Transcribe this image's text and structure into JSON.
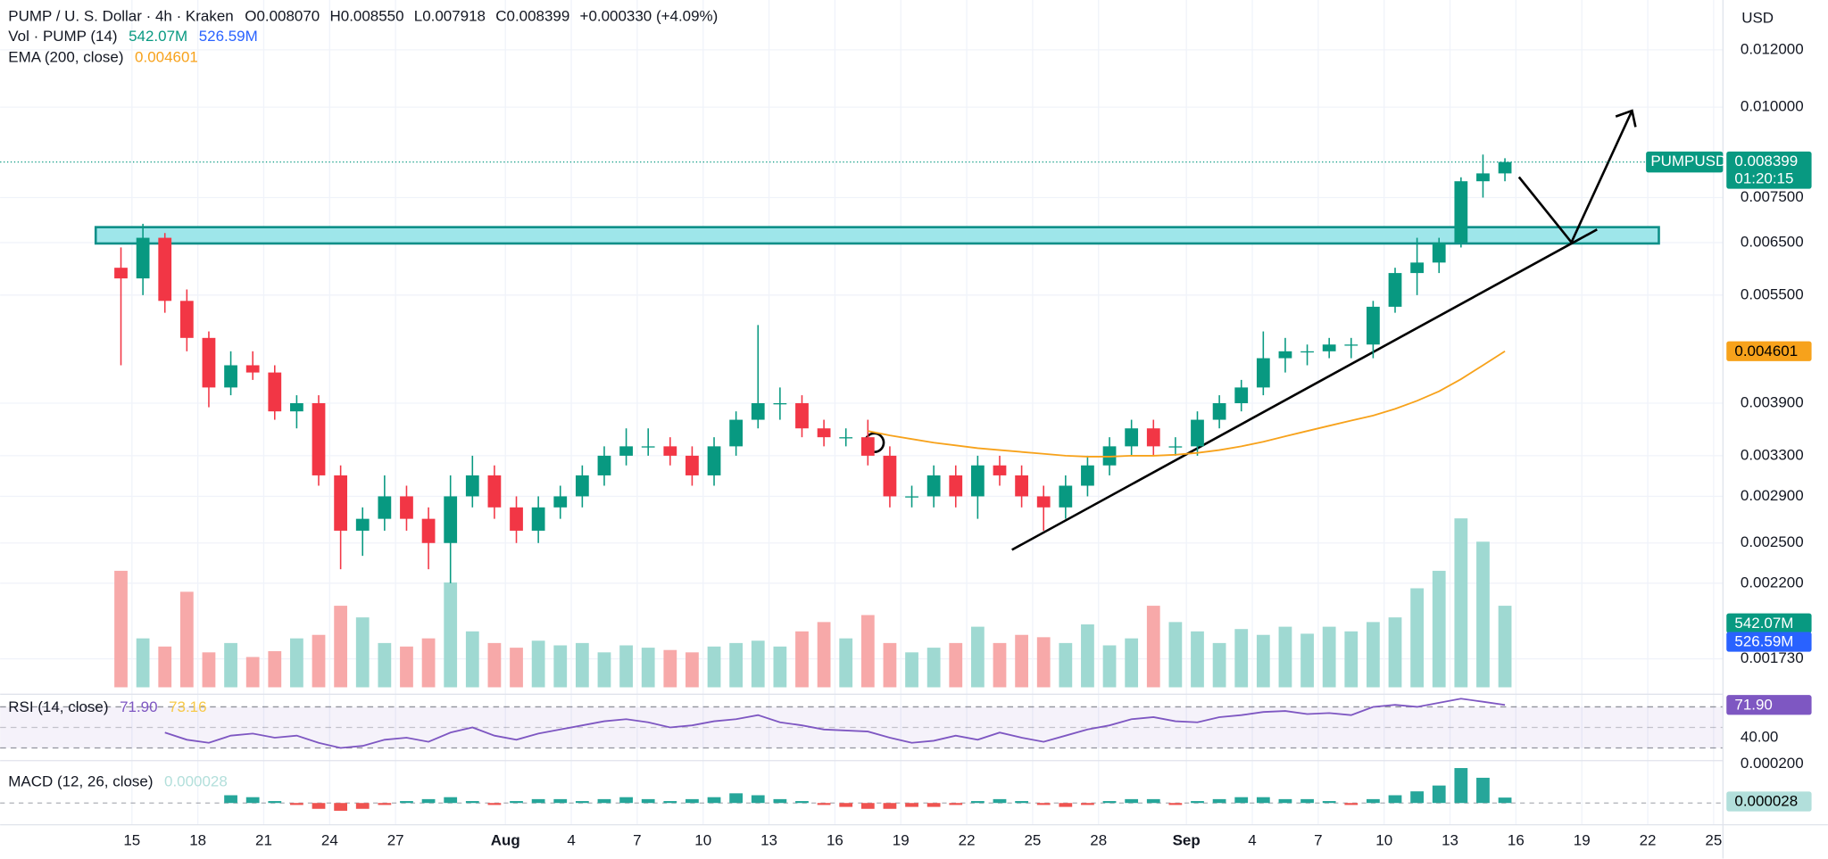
{
  "chart_data": {
    "type": "candlestick",
    "header": {
      "title": "PUMP / U. S. Dollar · 4h · Kraken",
      "ohlc": [
        {
          "k": "O",
          "v": "0.008070"
        },
        {
          "k": "H",
          "v": "0.008550"
        },
        {
          "k": "L",
          "v": "0.007918"
        },
        {
          "k": "C",
          "v": "0.008399"
        }
      ],
      "change": "+0.000330 (+4.09%)"
    },
    "vol_legend": {
      "label": "Vol · PUMP (14)",
      "values": [
        "542.07M",
        "526.59M"
      ]
    },
    "ema_legend": {
      "label": "EMA (200, close)",
      "value": "0.004601"
    },
    "currency": "USD",
    "tags": {
      "symbol": "PUMPUSD",
      "price": "0.008399",
      "countdown": "01:20:15",
      "ema": "0.004601",
      "vol": "542.07M",
      "vol_ma": "526.59M",
      "rsi": "71.90",
      "macd": "0.000028"
    },
    "x": [
      "07-14",
      "07-15",
      "07-16",
      "07-17",
      "07-18",
      "07-19",
      "07-20",
      "07-21",
      "07-22",
      "07-23",
      "07-24",
      "07-25",
      "07-26",
      "07-27",
      "07-28",
      "07-29",
      "07-30",
      "07-31",
      "08-01",
      "08-02",
      "08-03",
      "08-04",
      "08-05",
      "08-06",
      "08-07",
      "08-08",
      "08-09",
      "08-10",
      "08-11",
      "08-12",
      "08-13",
      "08-14",
      "08-15",
      "08-16",
      "08-17",
      "08-18",
      "08-19",
      "08-20",
      "08-21",
      "08-22",
      "08-23",
      "08-24",
      "08-25",
      "08-26",
      "08-27",
      "08-28",
      "08-29",
      "08-30",
      "08-31",
      "09-01",
      "09-02",
      "09-03",
      "09-04",
      "09-05",
      "09-06",
      "09-07",
      "09-08",
      "09-09",
      "09-10",
      "09-11",
      "09-12",
      "09-13",
      "09-14",
      "09-15"
    ],
    "open": [
      0.006,
      0.0058,
      0.0066,
      0.0054,
      0.0048,
      0.0041,
      0.0044,
      0.0043,
      0.0038,
      0.0039,
      0.0031,
      0.0026,
      0.0027,
      0.0029,
      0.0027,
      0.0025,
      0.0029,
      0.0031,
      0.0028,
      0.0026,
      0.0028,
      0.0029,
      0.0031,
      0.0033,
      0.0034,
      0.0034,
      0.0033,
      0.0031,
      0.0034,
      0.0037,
      0.0039,
      0.0039,
      0.0036,
      0.0035,
      0.0035,
      0.0033,
      0.0029,
      0.0029,
      0.0031,
      0.0029,
      0.0032,
      0.0031,
      0.0029,
      0.0028,
      0.003,
      0.0032,
      0.0034,
      0.0036,
      0.0034,
      0.0034,
      0.0037,
      0.0039,
      0.0041,
      0.0045,
      0.0046,
      0.0046,
      0.0047,
      0.0047,
      0.0053,
      0.0059,
      0.0061,
      0.0065,
      0.0079,
      0.0081
    ],
    "high": [
      0.0064,
      0.0069,
      0.0067,
      0.0056,
      0.0049,
      0.0046,
      0.0046,
      0.0044,
      0.004,
      0.004,
      0.0032,
      0.0028,
      0.0031,
      0.003,
      0.0028,
      0.0031,
      0.0033,
      0.0032,
      0.0029,
      0.0029,
      0.003,
      0.0032,
      0.0034,
      0.0036,
      0.0036,
      0.0035,
      0.0034,
      0.0035,
      0.0038,
      0.005,
      0.0041,
      0.004,
      0.0037,
      0.0036,
      0.0037,
      0.0034,
      0.003,
      0.0032,
      0.0032,
      0.0033,
      0.0033,
      0.0032,
      0.003,
      0.0031,
      0.0033,
      0.0035,
      0.0037,
      0.0037,
      0.0035,
      0.0038,
      0.004,
      0.0042,
      0.0049,
      0.0048,
      0.0047,
      0.0048,
      0.0048,
      0.0054,
      0.006,
      0.0066,
      0.0066,
      0.008,
      0.0086,
      0.0085
    ],
    "low": [
      0.0044,
      0.0055,
      0.0052,
      0.0046,
      0.00385,
      0.004,
      0.0042,
      0.0037,
      0.0036,
      0.003,
      0.0023,
      0.0024,
      0.0026,
      0.0026,
      0.0023,
      0.0022,
      0.0028,
      0.0027,
      0.0025,
      0.0025,
      0.0027,
      0.0028,
      0.003,
      0.0032,
      0.0033,
      0.0032,
      0.003,
      0.003,
      0.0033,
      0.0036,
      0.0037,
      0.0035,
      0.0034,
      0.0034,
      0.0032,
      0.0028,
      0.0028,
      0.0028,
      0.0028,
      0.0027,
      0.003,
      0.0028,
      0.0026,
      0.0027,
      0.0029,
      0.0031,
      0.0033,
      0.0033,
      0.0033,
      0.0033,
      0.0036,
      0.0038,
      0.004,
      0.0043,
      0.0044,
      0.0045,
      0.0045,
      0.0045,
      0.0052,
      0.0055,
      0.0059,
      0.0064,
      0.0075,
      0.0079
    ],
    "close": [
      0.0058,
      0.0066,
      0.0054,
      0.0048,
      0.0041,
      0.0044,
      0.0043,
      0.0038,
      0.0039,
      0.0031,
      0.0026,
      0.0027,
      0.0029,
      0.0027,
      0.0025,
      0.0029,
      0.0031,
      0.0028,
      0.0026,
      0.0028,
      0.0029,
      0.0031,
      0.0033,
      0.0034,
      0.0034,
      0.0033,
      0.0031,
      0.0034,
      0.0037,
      0.0039,
      0.0039,
      0.0036,
      0.0035,
      0.0035,
      0.0033,
      0.0029,
      0.0029,
      0.0031,
      0.0029,
      0.0032,
      0.0031,
      0.0029,
      0.0028,
      0.003,
      0.0032,
      0.0034,
      0.0036,
      0.0034,
      0.0034,
      0.0037,
      0.0039,
      0.0041,
      0.0045,
      0.0046,
      0.0046,
      0.0047,
      0.0047,
      0.0053,
      0.0059,
      0.0061,
      0.0065,
      0.0079,
      0.0081,
      0.008399
    ],
    "ema": [
      null,
      null,
      null,
      null,
      null,
      null,
      null,
      null,
      null,
      null,
      null,
      null,
      null,
      null,
      null,
      null,
      null,
      null,
      null,
      null,
      null,
      null,
      null,
      null,
      null,
      null,
      null,
      null,
      null,
      null,
      null,
      null,
      null,
      null,
      0.00357,
      0.00352,
      0.00348,
      0.00344,
      0.00341,
      0.00338,
      0.00336,
      0.00334,
      0.00332,
      0.0033,
      0.00329,
      0.00329,
      0.0033,
      0.0033,
      0.00331,
      0.00333,
      0.00336,
      0.0034,
      0.00345,
      0.00351,
      0.00357,
      0.00363,
      0.00369,
      0.00375,
      0.00383,
      0.00393,
      0.00405,
      0.00421,
      0.0044,
      0.004601
    ],
    "volume": [
      1000,
      420,
      350,
      820,
      300,
      380,
      260,
      310,
      420,
      450,
      700,
      600,
      380,
      350,
      420,
      900,
      480,
      380,
      340,
      400,
      360,
      380,
      300,
      360,
      340,
      320,
      300,
      350,
      380,
      400,
      350,
      480,
      560,
      420,
      620,
      380,
      300,
      340,
      380,
      520,
      380,
      450,
      430,
      380,
      540,
      360,
      420,
      700,
      560,
      480,
      380,
      500,
      450,
      520,
      460,
      520,
      480,
      560,
      600,
      850,
      1000,
      1450,
      1250,
      700
    ],
    "volume_lim": [
      0,
      5900
    ],
    "up_color": "#089981",
    "down_color": "#f23645",
    "up_volume_color": "#9fd9d2",
    "down_volume_color": "#f7a9a9",
    "ema_color": "#f7a21b",
    "log_scale": true,
    "grid": true,
    "ylim": [
      0.00158,
      0.01406
    ],
    "yticks": [
      {
        "value": 0.012,
        "label": "0.012000"
      },
      {
        "value": 0.01,
        "label": "0.010000"
      },
      {
        "value": 0.0075,
        "label": "0.007500"
      },
      {
        "value": 0.0065,
        "label": "0.006500"
      },
      {
        "value": 0.0055,
        "label": "0.005500"
      },
      {
        "value": 0.0039,
        "label": "0.003900"
      },
      {
        "value": 0.0033,
        "label": "0.003300"
      },
      {
        "value": 0.0029,
        "label": "0.002900"
      },
      {
        "value": 0.0025,
        "label": "0.002500"
      },
      {
        "value": 0.0022,
        "label": "0.002200"
      },
      {
        "value": 0.00173,
        "label": "0.001730"
      }
    ],
    "xlim": [
      "07-09",
      "09-25"
    ],
    "xticks": [
      {
        "value": "07-15",
        "label": "15"
      },
      {
        "value": "07-18",
        "label": "18"
      },
      {
        "value": "07-21",
        "label": "21"
      },
      {
        "value": "07-24",
        "label": "24"
      },
      {
        "value": "07-27",
        "label": "27"
      },
      {
        "value": "08-01",
        "label": "Aug"
      },
      {
        "value": "08-04",
        "label": "4"
      },
      {
        "value": "08-07",
        "label": "7"
      },
      {
        "value": "08-10",
        "label": "10"
      },
      {
        "value": "08-13",
        "label": "13"
      },
      {
        "value": "08-16",
        "label": "16"
      },
      {
        "value": "08-19",
        "label": "19"
      },
      {
        "value": "08-22",
        "label": "22"
      },
      {
        "value": "08-25",
        "label": "25"
      },
      {
        "value": "08-28",
        "label": "28"
      },
      {
        "value": "09-01",
        "label": "Sep"
      },
      {
        "value": "09-04",
        "label": "4"
      },
      {
        "value": "09-07",
        "label": "7"
      },
      {
        "value": "09-10",
        "label": "10"
      },
      {
        "value": "09-13",
        "label": "13"
      },
      {
        "value": "09-16",
        "label": "16"
      },
      {
        "value": "09-19",
        "label": "19"
      },
      {
        "value": "09-22",
        "label": "22"
      },
      {
        "value": "09-25",
        "label": "25"
      }
    ],
    "rsi": {
      "label": "RSI (14, close)",
      "legend_values": [
        "71.90",
        "73.16"
      ],
      "color": "#7e57c2",
      "ylim": [
        21,
        80
      ],
      "levels": [
        70,
        50,
        30
      ],
      "yticks": [
        {
          "value": 40,
          "label": "40.00"
        }
      ],
      "values": [
        null,
        null,
        45,
        38,
        35,
        42,
        44,
        40,
        42,
        35,
        30,
        32,
        38,
        40,
        36,
        45,
        50,
        42,
        38,
        44,
        48,
        52,
        56,
        58,
        55,
        50,
        52,
        56,
        58,
        62,
        55,
        52,
        48,
        47,
        46,
        40,
        35,
        37,
        42,
        38,
        45,
        40,
        36,
        42,
        48,
        52,
        58,
        60,
        56,
        55,
        60,
        62,
        65,
        66,
        63,
        64,
        62,
        70,
        72,
        70,
        74,
        78,
        75,
        71.9
      ]
    },
    "macd": {
      "label": "MACD (12, 26, close)",
      "legend_value": "0.000028",
      "ylim": [
        -9.4e-05,
        0.000206
      ],
      "yticks": [
        {
          "value": 0.0002,
          "label": "0.000200"
        }
      ],
      "up_color": "#26a69a",
      "down_color": "#ef5350",
      "histogram": [
        null,
        null,
        null,
        null,
        null,
        4e-05,
        3e-05,
        1e-05,
        -1e-05,
        -3e-05,
        -4e-05,
        -3e-05,
        -1e-05,
        1e-05,
        2e-05,
        3e-05,
        1e-05,
        -1e-05,
        1e-05,
        2e-05,
        2e-05,
        1e-05,
        2e-05,
        3e-05,
        2e-05,
        1e-05,
        2e-05,
        3e-05,
        5e-05,
        4e-05,
        2e-05,
        1e-05,
        -1e-05,
        -2e-05,
        -3e-05,
        -3e-05,
        -2e-05,
        -2e-05,
        -1e-05,
        1e-05,
        2e-05,
        1e-05,
        -1e-05,
        -2e-05,
        -1e-05,
        1e-05,
        2e-05,
        2e-05,
        -1e-05,
        1e-05,
        2e-05,
        3e-05,
        3e-05,
        2e-05,
        2e-05,
        1e-05,
        -1e-05,
        2e-05,
        4e-05,
        6e-05,
        9e-05,
        0.00018,
        0.00013,
        2.8e-05
      ]
    }
  }
}
